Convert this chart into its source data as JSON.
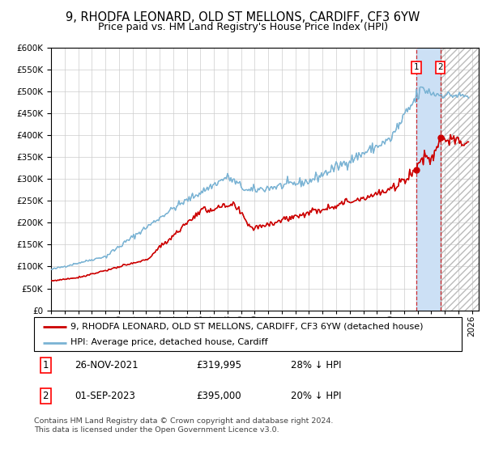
{
  "title": "9, RHODFA LEONARD, OLD ST MELLONS, CARDIFF, CF3 6YW",
  "subtitle": "Price paid vs. HM Land Registry's House Price Index (HPI)",
  "ylim": [
    0,
    600000
  ],
  "yticks": [
    0,
    50000,
    100000,
    150000,
    200000,
    250000,
    300000,
    350000,
    400000,
    450000,
    500000,
    550000,
    600000
  ],
  "xlim_start": 1995.0,
  "xlim_end": 2026.5,
  "hpi_color": "#7ab3d4",
  "price_color": "#cc0000",
  "marker_color": "#cc0000",
  "vspan_color": "#cce0f5",
  "vline_color": "#cc0000",
  "hatch_color": "#cccccc",
  "background_color": "#ffffff",
  "grid_color": "#cccccc",
  "transaction1_date": 2021.92,
  "transaction1_price": 319995,
  "transaction2_date": 2023.67,
  "transaction2_price": 395000,
  "legend_label1": "9, RHODFA LEONARD, OLD ST MELLONS, CARDIFF, CF3 6YW (detached house)",
  "legend_label2": "HPI: Average price, detached house, Cardiff",
  "table_row1": [
    "1",
    "26-NOV-2021",
    "£319,995",
    "28% ↓ HPI"
  ],
  "table_row2": [
    "2",
    "01-SEP-2023",
    "£395,000",
    "20% ↓ HPI"
  ],
  "footer": "Contains HM Land Registry data © Crown copyright and database right 2024.\nThis data is licensed under the Open Government Licence v3.0."
}
